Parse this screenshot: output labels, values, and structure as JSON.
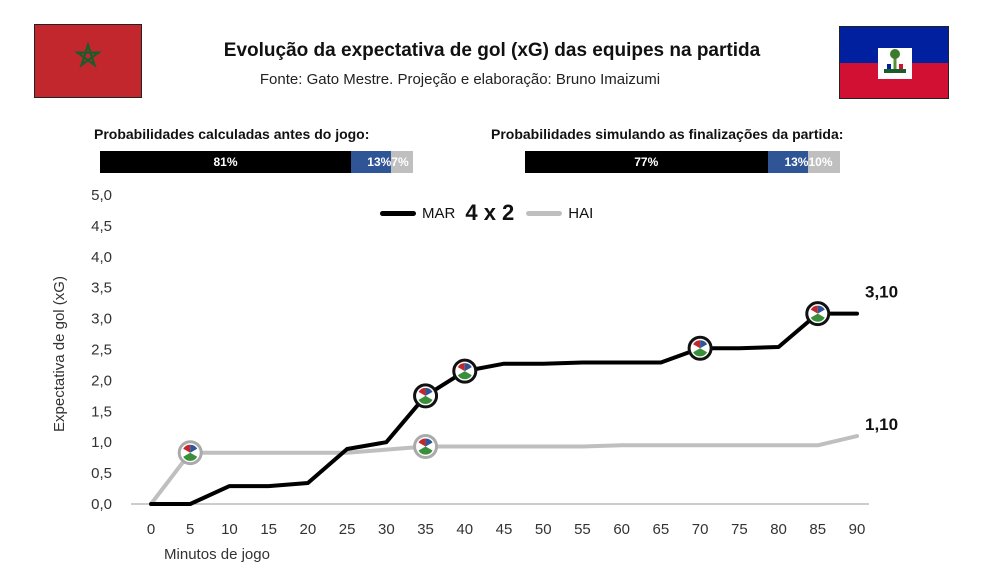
{
  "title": "Evolução da expectativa de gol (xG) das equipes na partida",
  "subtitle": "Fonte: Gato Mestre. Projeção e elaboração: Bruno Imaizumi",
  "probabilities_before": {
    "label": "Probabilidades calculadas antes do jogo:",
    "home": {
      "value": 81,
      "text": "81%"
    },
    "draw": {
      "value": 13,
      "text": "13%"
    },
    "away": {
      "value": 7,
      "text": "7%"
    }
  },
  "probabilities_simulated": {
    "label": "Probabilidades simulando as finalizações da partida:",
    "home": {
      "value": 77,
      "text": "77%"
    },
    "draw": {
      "value": 13,
      "text": "13%"
    },
    "away": {
      "value": 10,
      "text": "10%"
    }
  },
  "legend": {
    "home": "MAR",
    "score": "4 x 2",
    "away": "HAI"
  },
  "colors": {
    "home": "#000000",
    "away": "#bfbfbf",
    "draw": "#2f5597",
    "morocco_flag": "#c1272d",
    "haiti_blue": "#00209f",
    "haiti_red": "#d21034"
  },
  "chart_data": {
    "type": "line",
    "xlabel": "Minutos de jogo",
    "ylabel": "Expectativa de gol (xG)",
    "xlim": [
      0,
      90
    ],
    "ylim": [
      0,
      5
    ],
    "x_ticks": [
      "0",
      "5",
      "10",
      "15",
      "20",
      "25",
      "30",
      "35",
      "40",
      "45",
      "50",
      "55",
      "60",
      "65",
      "70",
      "75",
      "80",
      "85",
      "90"
    ],
    "y_ticks": [
      "0,0",
      "0,5",
      "1,0",
      "1,5",
      "2,0",
      "2,5",
      "3,0",
      "3,5",
      "4,0",
      "4,5",
      "5,0"
    ],
    "series": [
      {
        "name": "MAR",
        "color": "#000000",
        "points": [
          [
            0,
            0
          ],
          [
            5,
            0
          ],
          [
            10,
            0.29
          ],
          [
            15,
            0.29
          ],
          [
            20,
            0.34
          ],
          [
            25,
            0.89
          ],
          [
            30,
            1.0
          ],
          [
            35,
            1.75
          ],
          [
            40,
            2.15
          ],
          [
            45,
            2.27
          ],
          [
            50,
            2.27
          ],
          [
            55,
            2.29
          ],
          [
            60,
            2.29
          ],
          [
            65,
            2.29
          ],
          [
            70,
            2.52
          ],
          [
            75,
            2.52
          ],
          [
            80,
            2.54
          ],
          [
            85,
            3.08
          ],
          [
            90,
            3.08
          ]
        ],
        "goals": [
          [
            35,
            1.75
          ],
          [
            40,
            2.15
          ],
          [
            70,
            2.52
          ],
          [
            85,
            3.08
          ]
        ],
        "final_label": "3,10"
      },
      {
        "name": "HAI",
        "color": "#bfbfbf",
        "points": [
          [
            0,
            0
          ],
          [
            5,
            0.83
          ],
          [
            10,
            0.83
          ],
          [
            15,
            0.83
          ],
          [
            20,
            0.83
          ],
          [
            25,
            0.83
          ],
          [
            30,
            0.88
          ],
          [
            35,
            0.93
          ],
          [
            40,
            0.93
          ],
          [
            45,
            0.93
          ],
          [
            50,
            0.93
          ],
          [
            55,
            0.93
          ],
          [
            60,
            0.95
          ],
          [
            65,
            0.95
          ],
          [
            70,
            0.95
          ],
          [
            75,
            0.95
          ],
          [
            80,
            0.95
          ],
          [
            85,
            0.95
          ],
          [
            90,
            1.1
          ]
        ],
        "goals": [
          [
            5,
            0.83
          ],
          [
            35,
            0.93
          ]
        ],
        "final_label": "1,10"
      }
    ]
  }
}
